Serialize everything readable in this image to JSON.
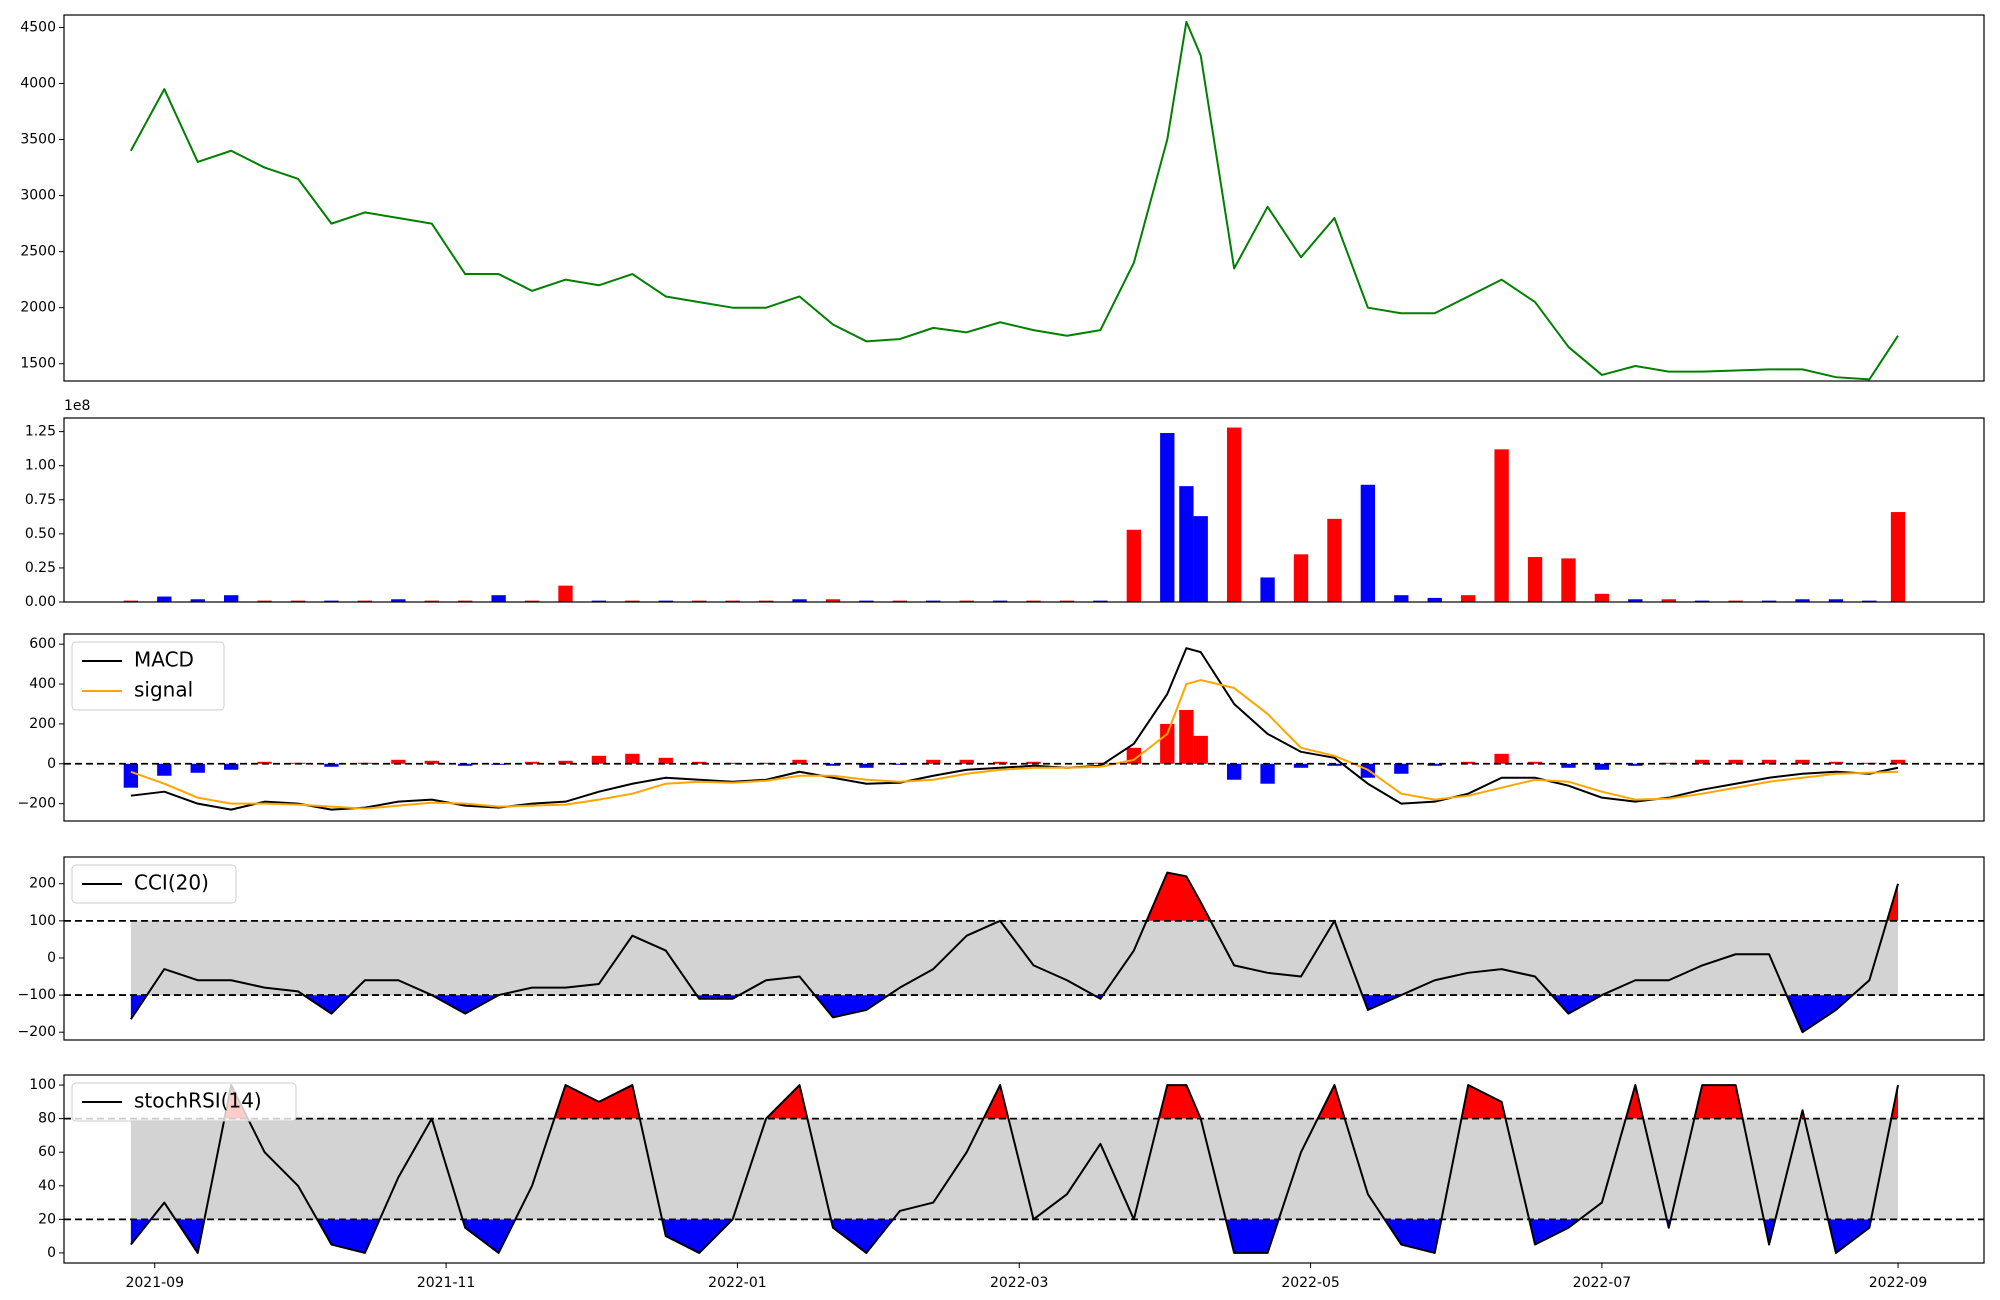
{
  "chart_data": [
    {
      "type": "line",
      "x": [
        "2021-08-27",
        "2021-09-03",
        "2021-09-10",
        "2021-09-17",
        "2021-09-24",
        "2021-10-01",
        "2021-10-08",
        "2021-10-15",
        "2021-10-22",
        "2021-10-29",
        "2021-11-05",
        "2021-11-12",
        "2021-11-19",
        "2021-11-26",
        "2021-12-03",
        "2021-12-10",
        "2021-12-17",
        "2021-12-24",
        "2021-12-31",
        "2022-01-07",
        "2022-01-14",
        "2022-01-21",
        "2022-01-28",
        "2022-02-04",
        "2022-02-11",
        "2022-02-18",
        "2022-02-25",
        "2022-03-04",
        "2022-03-11",
        "2022-03-18",
        "2022-03-25",
        "2022-04-01",
        "2022-04-05",
        "2022-04-08",
        "2022-04-15",
        "2022-04-22",
        "2022-04-29",
        "2022-05-06",
        "2022-05-13",
        "2022-05-20",
        "2022-05-27",
        "2022-06-03",
        "2022-06-10",
        "2022-06-17",
        "2022-06-24",
        "2022-07-01",
        "2022-07-08",
        "2022-07-15",
        "2022-07-22",
        "2022-07-29",
        "2022-08-05",
        "2022-08-12",
        "2022-08-19",
        "2022-08-26",
        "2022-09-01"
      ],
      "series": [
        {
          "color": "#008000",
          "values": [
            3400,
            3950,
            3300,
            3400,
            3250,
            3150,
            2750,
            2850,
            2800,
            2750,
            2300,
            2300,
            2150,
            2250,
            2200,
            2300,
            2100,
            2050,
            2000,
            2000,
            2100,
            1850,
            1700,
            1720,
            1820,
            1780,
            1870,
            1800,
            1750,
            1800,
            2400,
            3500,
            4550,
            4250,
            2350,
            2900,
            2450,
            2800,
            2000,
            1950,
            1950,
            2100,
            2250,
            2050,
            1650,
            1400,
            1480,
            1430,
            1430,
            1440,
            1450,
            1450,
            1380,
            1360,
            1750
          ]
        }
      ],
      "xlim": [
        "2021-08-13",
        "2022-09-19"
      ],
      "ylim": [
        1346,
        4611
      ],
      "yticks": [
        1500,
        2000,
        2500,
        3000,
        3500,
        4000,
        4500
      ]
    },
    {
      "type": "bar",
      "x": [
        "2021-08-27",
        "2021-09-03",
        "2021-09-10",
        "2021-09-17",
        "2021-09-24",
        "2021-10-01",
        "2021-10-08",
        "2021-10-15",
        "2021-10-22",
        "2021-10-29",
        "2021-11-05",
        "2021-11-12",
        "2021-11-19",
        "2021-11-26",
        "2021-12-03",
        "2021-12-10",
        "2021-12-17",
        "2021-12-24",
        "2021-12-31",
        "2022-01-07",
        "2022-01-14",
        "2022-01-21",
        "2022-01-28",
        "2022-02-04",
        "2022-02-11",
        "2022-02-18",
        "2022-02-25",
        "2022-03-04",
        "2022-03-11",
        "2022-03-18",
        "2022-03-25",
        "2022-04-01",
        "2022-04-05",
        "2022-04-08",
        "2022-04-15",
        "2022-04-22",
        "2022-04-29",
        "2022-05-06",
        "2022-05-13",
        "2022-05-20",
        "2022-05-27",
        "2022-06-03",
        "2022-06-10",
        "2022-06-17",
        "2022-06-24",
        "2022-07-01",
        "2022-07-08",
        "2022-07-15",
        "2022-07-22",
        "2022-07-29",
        "2022-08-05",
        "2022-08-12",
        "2022-08-19",
        "2022-08-26",
        "2022-09-01"
      ],
      "values": [
        0.01,
        0.04,
        0.02,
        0.05,
        0.01,
        0.01,
        0.01,
        0.01,
        0.02,
        0.01,
        0.01,
        0.05,
        0.01,
        0.12,
        0.01,
        0.01,
        0.01,
        0.01,
        0.01,
        0.01,
        0.02,
        0.02,
        0.01,
        0.01,
        0.01,
        0.01,
        0.01,
        0.01,
        0.01,
        0.01,
        0.53,
        1.24,
        0.85,
        0.63,
        1.28,
        0.18,
        0.35,
        0.61,
        0.86,
        0.05,
        0.03,
        0.05,
        1.12,
        0.33,
        0.32,
        0.06,
        0.02,
        0.02,
        0.01,
        0.01,
        0.01,
        0.02,
        0.02,
        0.01,
        0.66
      ],
      "colors": [
        "#ff0000",
        "#0000ff",
        "#0000ff",
        "#0000ff",
        "#ff0000",
        "#ff0000",
        "#0000ff",
        "#ff0000",
        "#0000ff",
        "#ff0000",
        "#ff0000",
        "#0000ff",
        "#ff0000",
        "#ff0000",
        "#0000ff",
        "#ff0000",
        "#0000ff",
        "#ff0000",
        "#ff0000",
        "#ff0000",
        "#0000ff",
        "#ff0000",
        "#0000ff",
        "#ff0000",
        "#0000ff",
        "#ff0000",
        "#0000ff",
        "#ff0000",
        "#ff0000",
        "#0000ff",
        "#ff0000",
        "#0000ff",
        "#0000ff",
        "#0000ff",
        "#ff0000",
        "#0000ff",
        "#ff0000",
        "#ff0000",
        "#0000ff",
        "#0000ff",
        "#0000ff",
        "#ff0000",
        "#ff0000",
        "#ff0000",
        "#ff0000",
        "#ff0000",
        "#0000ff",
        "#ff0000",
        "#0000ff",
        "#ff0000",
        "#0000ff",
        "#0000ff",
        "#0000ff",
        "#0000ff",
        "#ff0000"
      ],
      "offset_label": "1e8",
      "xlim": [
        "2021-08-13",
        "2022-09-19"
      ],
      "ylim": [
        0,
        1.35
      ],
      "yticks": [
        {
          "value": 0,
          "label": "0.00"
        },
        0.25,
        {
          "value": 0.5,
          "label": "0.50"
        },
        0.75,
        {
          "value": 1,
          "label": "1.00"
        },
        1.25
      ]
    },
    {
      "type": "line",
      "x": [
        "2021-08-27",
        "2021-09-03",
        "2021-09-10",
        "2021-09-17",
        "2021-09-24",
        "2021-10-01",
        "2021-10-08",
        "2021-10-15",
        "2021-10-22",
        "2021-10-29",
        "2021-11-05",
        "2021-11-12",
        "2021-11-19",
        "2021-11-26",
        "2021-12-03",
        "2021-12-10",
        "2021-12-17",
        "2021-12-24",
        "2021-12-31",
        "2022-01-07",
        "2022-01-14",
        "2022-01-21",
        "2022-01-28",
        "2022-02-04",
        "2022-02-11",
        "2022-02-18",
        "2022-02-25",
        "2022-03-04",
        "2022-03-11",
        "2022-03-18",
        "2022-03-25",
        "2022-04-01",
        "2022-04-05",
        "2022-04-08",
        "2022-04-15",
        "2022-04-22",
        "2022-04-29",
        "2022-05-06",
        "2022-05-13",
        "2022-05-20",
        "2022-05-27",
        "2022-06-03",
        "2022-06-10",
        "2022-06-17",
        "2022-06-24",
        "2022-07-01",
        "2022-07-08",
        "2022-07-15",
        "2022-07-22",
        "2022-07-29",
        "2022-08-05",
        "2022-08-12",
        "2022-08-19",
        "2022-08-26",
        "2022-09-01"
      ],
      "series": [
        {
          "name": "MACD",
          "color": "#000000",
          "values": [
            -160,
            -140,
            -200,
            -230,
            -190,
            -200,
            -230,
            -220,
            -190,
            -180,
            -210,
            -220,
            -200,
            -190,
            -140,
            -100,
            -70,
            -80,
            -90,
            -80,
            -40,
            -70,
            -100,
            -95,
            -60,
            -30,
            -20,
            -10,
            -20,
            -10,
            100,
            350,
            580,
            560,
            300,
            150,
            60,
            30,
            -100,
            -200,
            -190,
            -150,
            -70,
            -70,
            -110,
            -170,
            -190,
            -170,
            -130,
            -100,
            -70,
            -50,
            -40,
            -50,
            -20
          ]
        },
        {
          "name": "signal",
          "color": "#ffa500",
          "values": [
            -40,
            -100,
            -170,
            -200,
            -200,
            -205,
            -215,
            -225,
            -210,
            -195,
            -200,
            -215,
            -210,
            -205,
            -180,
            -150,
            -100,
            -90,
            -95,
            -85,
            -60,
            -60,
            -80,
            -90,
            -80,
            -50,
            -30,
            -20,
            -20,
            -15,
            20,
            150,
            400,
            420,
            380,
            250,
            80,
            40,
            -30,
            -150,
            -180,
            -160,
            -120,
            -80,
            -90,
            -140,
            -180,
            -175,
            -150,
            -120,
            -90,
            -70,
            -50,
            -45,
            -40
          ]
        }
      ],
      "histogram": {
        "up_color": "#ff0000",
        "down_color": "#0000ff",
        "values": [
          -120,
          -60,
          -45,
          -30,
          10,
          5,
          -15,
          5,
          20,
          15,
          -10,
          -5,
          10,
          15,
          40,
          50,
          30,
          10,
          5,
          5,
          20,
          -10,
          -20,
          -5,
          20,
          20,
          10,
          10,
          0,
          5,
          80,
          200,
          270,
          140,
          -80,
          -100,
          -20,
          -10,
          -70,
          -50,
          -10,
          10,
          50,
          10,
          -20,
          -30,
          -10,
          5,
          20,
          20,
          20,
          20,
          10,
          5,
          20
        ]
      },
      "hlines": [
        0
      ],
      "legend": "upper left",
      "xlim": [
        "2021-08-13",
        "2022-09-19"
      ],
      "ylim": [
        -287,
        651
      ],
      "yticks": [
        {
          "value": -200,
          "label": "−200"
        },
        0,
        200,
        400,
        600
      ]
    },
    {
      "type": "line",
      "x": [
        "2021-08-27",
        "2021-09-03",
        "2021-09-10",
        "2021-09-17",
        "2021-09-24",
        "2021-10-01",
        "2021-10-08",
        "2021-10-15",
        "2021-10-22",
        "2021-10-29",
        "2021-11-05",
        "2021-11-12",
        "2021-11-19",
        "2021-11-26",
        "2021-12-03",
        "2021-12-10",
        "2021-12-17",
        "2021-12-24",
        "2021-12-31",
        "2022-01-07",
        "2022-01-14",
        "2022-01-21",
        "2022-01-28",
        "2022-02-04",
        "2022-02-11",
        "2022-02-18",
        "2022-02-25",
        "2022-03-04",
        "2022-03-11",
        "2022-03-18",
        "2022-03-25",
        "2022-04-01",
        "2022-04-05",
        "2022-04-08",
        "2022-04-15",
        "2022-04-22",
        "2022-04-29",
        "2022-05-06",
        "2022-05-13",
        "2022-05-20",
        "2022-05-27",
        "2022-06-03",
        "2022-06-10",
        "2022-06-17",
        "2022-06-24",
        "2022-07-01",
        "2022-07-08",
        "2022-07-15",
        "2022-07-22",
        "2022-07-29",
        "2022-08-05",
        "2022-08-12",
        "2022-08-19",
        "2022-08-26",
        "2022-09-01"
      ],
      "series": [
        {
          "name": "CCI(20)",
          "color": "#000000",
          "values": [
            -165,
            -30,
            -60,
            -60,
            -80,
            -90,
            -150,
            -60,
            -60,
            -100,
            -150,
            -100,
            -80,
            -80,
            -70,
            60,
            20,
            -110,
            -110,
            -60,
            -50,
            -160,
            -140,
            -80,
            -30,
            60,
            100,
            -20,
            -60,
            -110,
            20,
            230,
            220,
            150,
            -20,
            -40,
            -50,
            100,
            -140,
            -100,
            -60,
            -40,
            -30,
            -50,
            -150,
            -100,
            -60,
            -60,
            -20,
            10,
            10,
            -200,
            -140,
            -60,
            200
          ]
        }
      ],
      "band": [
        -100,
        100
      ],
      "band_color": "#d3d3d3",
      "over_color": "#ff0000",
      "under_color": "#0000ff",
      "hlines": [
        100,
        -100
      ],
      "legend": "upper left",
      "xlim": [
        "2021-08-13",
        "2022-09-19"
      ],
      "ylim": [
        -221,
        272
      ],
      "yticks": [
        {
          "value": -200,
          "label": "−200"
        },
        {
          "value": -100,
          "label": "−100"
        },
        0,
        100,
        200
      ]
    },
    {
      "type": "line",
      "x": [
        "2021-08-27",
        "2021-09-03",
        "2021-09-10",
        "2021-09-17",
        "2021-09-24",
        "2021-10-01",
        "2021-10-08",
        "2021-10-15",
        "2021-10-22",
        "2021-10-29",
        "2021-11-05",
        "2021-11-12",
        "2021-11-19",
        "2021-11-26",
        "2021-12-03",
        "2021-12-10",
        "2021-12-17",
        "2021-12-24",
        "2021-12-31",
        "2022-01-07",
        "2022-01-14",
        "2022-01-21",
        "2022-01-28",
        "2022-02-04",
        "2022-02-11",
        "2022-02-18",
        "2022-02-25",
        "2022-03-04",
        "2022-03-11",
        "2022-03-18",
        "2022-03-25",
        "2022-04-01",
        "2022-04-05",
        "2022-04-08",
        "2022-04-15",
        "2022-04-22",
        "2022-04-29",
        "2022-05-06",
        "2022-05-13",
        "2022-05-20",
        "2022-05-27",
        "2022-06-03",
        "2022-06-10",
        "2022-06-17",
        "2022-06-24",
        "2022-07-01",
        "2022-07-08",
        "2022-07-15",
        "2022-07-22",
        "2022-07-29",
        "2022-08-05",
        "2022-08-12",
        "2022-08-19",
        "2022-08-26",
        "2022-09-01"
      ],
      "series": [
        {
          "name": "stochRSI(14)",
          "color": "#000000",
          "values": [
            5,
            30,
            0,
            100,
            60,
            40,
            5,
            0,
            45,
            80,
            15,
            0,
            40,
            100,
            90,
            100,
            10,
            0,
            20,
            80,
            100,
            15,
            0,
            25,
            30,
            60,
            100,
            20,
            35,
            65,
            20,
            100,
            100,
            80,
            0,
            0,
            60,
            100,
            35,
            5,
            0,
            100,
            90,
            5,
            15,
            30,
            100,
            15,
            100,
            100,
            5,
            85,
            0,
            15,
            100
          ]
        }
      ],
      "band": [
        20,
        80
      ],
      "band_color": "#d3d3d3",
      "over_color": "#ff0000",
      "under_color": "#0000ff",
      "hlines": [
        80,
        20
      ],
      "legend": "upper left",
      "xlim": [
        "2021-08-13",
        "2022-09-19"
      ],
      "ylim": [
        -6,
        106
      ],
      "yticks": [
        0,
        20,
        40,
        60,
        80,
        100
      ],
      "xticks": [
        "2021-09",
        "2021-11",
        "2022-01",
        "2022-03",
        "2022-05",
        "2022-07",
        "2022-09"
      ]
    }
  ]
}
